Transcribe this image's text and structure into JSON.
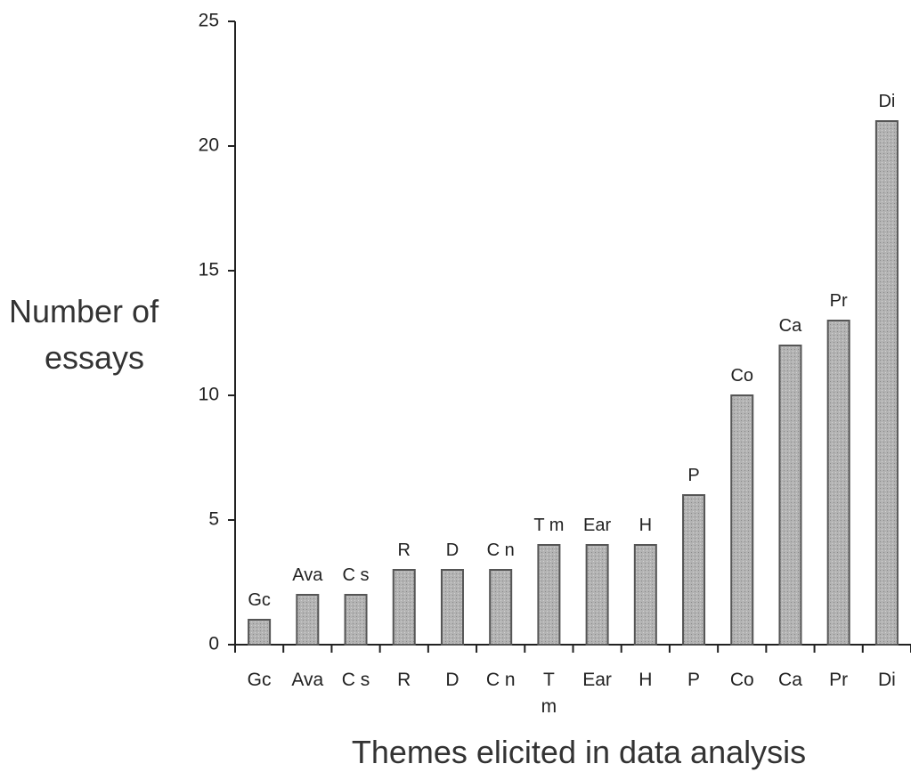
{
  "chart_data": {
    "type": "bar",
    "title": "",
    "ylabel": "Number of essays",
    "xlabel": "Themes elicited in data analysis",
    "categories": [
      "Gc",
      "Ava",
      "C s",
      "R",
      "D",
      "C n",
      "T\nm",
      "Ear",
      "H",
      "P",
      "Co",
      "Ca",
      "Pr",
      "Di"
    ],
    "data_labels": [
      "Gc",
      "Ava",
      "C s",
      "R",
      "D",
      "C n",
      "T m",
      "Ear",
      "H",
      "P",
      "Co",
      "Ca",
      "Pr",
      "Di"
    ],
    "values": [
      1,
      2,
      2,
      3,
      3,
      3,
      4,
      4,
      4,
      6,
      10,
      12,
      13,
      21
    ],
    "ylim": [
      0,
      25
    ],
    "yticks": [
      0,
      5,
      10,
      15,
      20,
      25
    ],
    "grid": false,
    "legend": "none",
    "colors": {
      "bar_fill": "#a9a9a9",
      "bar_stroke": "#555555",
      "axis": "#222222"
    }
  }
}
